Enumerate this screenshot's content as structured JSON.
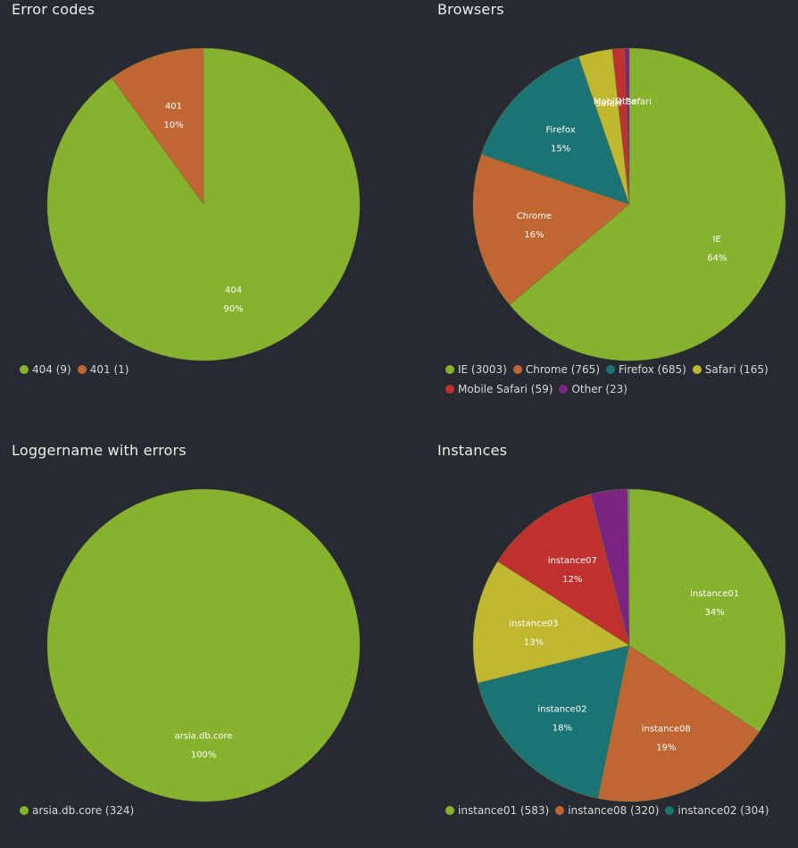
{
  "colors": {
    "background": "#272a30",
    "green": "#86b22e",
    "orange": "#c06632",
    "teal": "#1c7373",
    "yellow": "#c0b830",
    "red": "#c0302f",
    "purple": "#7b2482"
  },
  "chart_data": [
    {
      "type": "pie",
      "title": "Error codes",
      "slices": [
        {
          "label": "404",
          "value": 9,
          "percent": "90%",
          "legend": "404 (9)",
          "color": "#86b22e"
        },
        {
          "label": "401",
          "value": 1,
          "percent": "10%",
          "legend": "401 (1)",
          "color": "#c06632"
        }
      ],
      "legend_position": "bottom"
    },
    {
      "type": "pie",
      "title": "Browsers",
      "slices": [
        {
          "label": "IE",
          "value": 3003,
          "percent": "64%",
          "legend": "IE (3003)",
          "color": "#86b22e"
        },
        {
          "label": "Chrome",
          "value": 765,
          "percent": "16%",
          "legend": "Chrome (765)",
          "color": "#c06632"
        },
        {
          "label": "Firefox",
          "value": 685,
          "percent": "15%",
          "legend": "Firefox (685)",
          "color": "#1c7373"
        },
        {
          "label": "Safari",
          "value": 165,
          "percent": "",
          "legend": "Safari (165)",
          "color": "#c0b830"
        },
        {
          "label": "Mobile Safari",
          "value": 59,
          "percent": "",
          "legend": "Mobile Safari (59)",
          "color": "#c0302f"
        },
        {
          "label": "Other",
          "value": 23,
          "percent": "",
          "legend": "Other (23)",
          "color": "#7b2482"
        }
      ],
      "legend_position": "bottom"
    },
    {
      "type": "pie",
      "title": "Loggername with errors",
      "slices": [
        {
          "label": "arsia.db.core",
          "value": 324,
          "percent": "100%",
          "legend": "arsia.db.core (324)",
          "color": "#86b22e"
        }
      ],
      "legend_position": "bottom"
    },
    {
      "type": "pie",
      "title": "Instances",
      "slices": [
        {
          "label": "instance01",
          "value": 583,
          "percent": "34%",
          "legend": "instance01 (583)",
          "color": "#86b22e"
        },
        {
          "label": "instance08",
          "value": 320,
          "percent": "19%",
          "legend": "instance08 (320)",
          "color": "#c06632"
        },
        {
          "label": "instance02",
          "value": 304,
          "percent": "18%",
          "legend": "instance02 (304)",
          "color": "#1c7373"
        },
        {
          "label": "instance03",
          "value": 219,
          "percent": "13%",
          "legend": "",
          "color": "#c0b830"
        },
        {
          "label": "instance07",
          "value": 203,
          "percent": "12%",
          "legend": "",
          "color": "#c0302f"
        },
        {
          "label": "",
          "value": 65,
          "percent": "",
          "legend": "",
          "color": "#7b2482"
        },
        {
          "label": "",
          "value": 3,
          "percent": "",
          "legend": "",
          "color": "#5a8a8a"
        }
      ],
      "legend_position": "bottom"
    }
  ]
}
